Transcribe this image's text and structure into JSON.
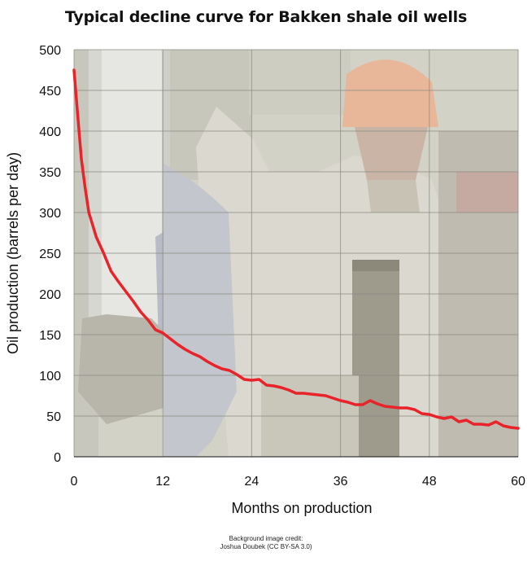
{
  "chart_data": {
    "type": "line",
    "title": "Typical decline curve for Bakken shale oil wells",
    "xlabel": "Months on production",
    "ylabel": "Oil production (barrels per day)",
    "xlim": [
      0,
      60
    ],
    "ylim": [
      0,
      500
    ],
    "x_ticks": [
      0,
      12,
      24,
      36,
      48,
      60
    ],
    "y_ticks": [
      0,
      50,
      100,
      150,
      200,
      250,
      300,
      350,
      400,
      450,
      500
    ],
    "grid": true,
    "legend": "none",
    "line_color": "#e8232a",
    "series": [
      {
        "x": [
          0,
          0.5,
          1,
          1.5,
          2,
          2.5,
          3,
          4,
          5,
          6,
          7,
          8,
          9,
          10,
          11,
          12,
          13,
          14,
          15,
          16,
          17,
          18,
          19,
          20,
          21,
          22,
          23,
          24,
          25,
          26,
          27,
          28,
          29,
          30,
          31,
          32,
          33,
          34,
          35,
          36,
          37,
          38,
          39,
          40,
          41,
          42,
          43,
          44,
          45,
          46,
          47,
          48,
          49,
          50,
          51,
          52,
          53,
          54,
          55,
          56,
          57,
          58,
          59,
          60
        ],
        "values": [
          475,
          420,
          365,
          330,
          300,
          285,
          270,
          250,
          228,
          215,
          203,
          191,
          178,
          168,
          156,
          152,
          145,
          138,
          132,
          127,
          123,
          117,
          112,
          108,
          106,
          101,
          95,
          94,
          95,
          88,
          87,
          85,
          82,
          78,
          78,
          77,
          76,
          75,
          72,
          69,
          67,
          64,
          64,
          69,
          65,
          62,
          61,
          60,
          60,
          58,
          53,
          52,
          49,
          47,
          49,
          43,
          45,
          40,
          40,
          39,
          43,
          38,
          36,
          35
        ]
      }
    ]
  },
  "credit": {
    "line1": "Background image credit:",
    "line2": "Joshua Doubek (CC BY-SA 3.0)"
  }
}
